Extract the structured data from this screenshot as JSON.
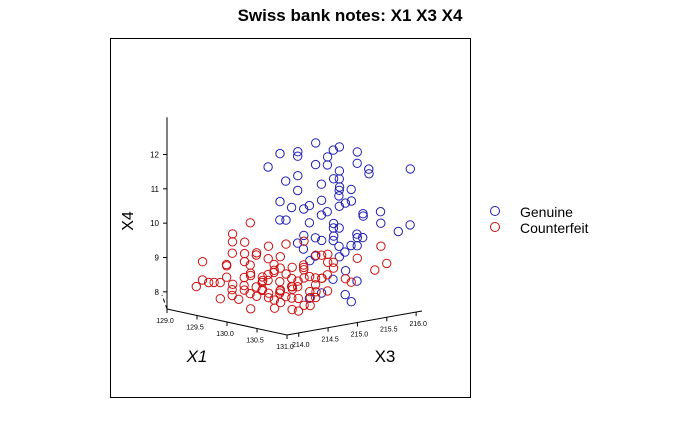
{
  "chart_data": {
    "type": "scatter",
    "title": "Swiss bank notes: X1 X3 X4",
    "xlabel": "X1",
    "ylabel": "X3",
    "zlabel": "X4",
    "x_ticks": [
      "129.0",
      "129.5",
      "130.0",
      "130.5",
      "131.0"
    ],
    "y_ticks": [
      "214.0",
      "214.5",
      "215.0",
      "215.5",
      "216.0"
    ],
    "z_ticks": [
      "8",
      "9",
      "10",
      "11",
      "12"
    ],
    "xlim": [
      129.0,
      131.0
    ],
    "ylim": [
      213.8,
      216.1
    ],
    "zlim": [
      7.5,
      12.8
    ],
    "legend_position": "right",
    "series": [
      {
        "name": "Genuine",
        "color": "#1f1fb4",
        "marker": "open-circle",
        "points": [
          [
            130.5,
            214.8,
            12.6
          ],
          [
            130.7,
            215.0,
            12.5
          ],
          [
            130.3,
            214.7,
            12.3
          ],
          [
            130.9,
            215.1,
            12.4
          ],
          [
            130.6,
            214.9,
            12.2
          ],
          [
            130.8,
            215.2,
            12.0
          ],
          [
            130.2,
            214.8,
            12.1
          ],
          [
            130.4,
            214.9,
            11.9
          ],
          [
            130.7,
            215.0,
            11.8
          ],
          [
            130.1,
            214.6,
            12.2
          ],
          [
            130.9,
            215.3,
            11.7
          ],
          [
            130.5,
            215.0,
            11.9
          ],
          [
            130.3,
            214.7,
            11.6
          ],
          [
            130.6,
            215.1,
            11.5
          ],
          [
            130.8,
            214.9,
            11.4
          ],
          [
            130.0,
            214.5,
            11.8
          ],
          [
            130.4,
            215.0,
            11.3
          ],
          [
            130.7,
            215.2,
            11.2
          ],
          [
            130.2,
            214.8,
            11.1
          ],
          [
            130.9,
            215.0,
            11.0
          ],
          [
            130.5,
            214.9,
            10.9
          ],
          [
            130.1,
            214.6,
            10.8
          ],
          [
            130.6,
            215.1,
            10.7
          ],
          [
            130.3,
            214.8,
            10.6
          ],
          [
            130.8,
            215.3,
            10.5
          ],
          [
            130.4,
            215.0,
            10.4
          ],
          [
            130.7,
            214.9,
            10.3
          ],
          [
            130.0,
            214.7,
            10.2
          ],
          [
            130.2,
            215.0,
            10.1
          ],
          [
            130.5,
            215.2,
            10.0
          ],
          [
            130.9,
            215.1,
            9.9
          ],
          [
            130.6,
            214.8,
            9.8
          ],
          [
            130.3,
            215.0,
            9.7
          ],
          [
            130.8,
            215.2,
            9.6
          ],
          [
            130.1,
            214.9,
            9.5
          ],
          [
            130.4,
            215.3,
            9.4
          ],
          [
            130.7,
            215.0,
            9.3
          ],
          [
            130.5,
            214.7,
            9.2
          ],
          [
            130.2,
            215.1,
            9.1
          ],
          [
            130.9,
            214.9,
            9.0
          ],
          [
            130.6,
            215.4,
            9.8
          ],
          [
            130.3,
            215.2,
            10.4
          ],
          [
            130.8,
            215.0,
            10.9
          ],
          [
            130.0,
            214.8,
            11.3
          ],
          [
            130.5,
            215.1,
            12.3
          ],
          [
            130.7,
            214.9,
            11.6
          ],
          [
            130.2,
            215.0,
            10.6
          ],
          [
            130.4,
            214.7,
            9.9
          ],
          [
            130.9,
            215.5,
            10.2
          ],
          [
            130.6,
            215.3,
            9.5
          ],
          [
            130.1,
            215.0,
            9.3
          ],
          [
            130.8,
            214.8,
            10.0
          ],
          [
            130.3,
            215.4,
            10.8
          ],
          [
            130.5,
            215.2,
            11.1
          ],
          [
            130.7,
            215.5,
            11.7
          ],
          [
            130.0,
            214.9,
            10.5
          ],
          [
            130.4,
            215.2,
            9.6
          ],
          [
            130.2,
            214.6,
            10.3
          ],
          [
            130.9,
            215.2,
            10.5
          ],
          [
            130.6,
            215.0,
            10.1
          ],
          [
            131.0,
            215.9,
            11.7
          ],
          [
            130.9,
            216.0,
            10.0
          ],
          [
            130.8,
            215.9,
            9.8
          ],
          [
            130.7,
            215.7,
            10.4
          ],
          [
            130.5,
            215.6,
            9.6
          ],
          [
            130.4,
            215.4,
            9.2
          ],
          [
            130.3,
            215.3,
            8.4
          ],
          [
            130.6,
            215.2,
            8.1
          ],
          [
            130.8,
            215.1,
            8.0
          ],
          [
            130.2,
            215.0,
            7.9
          ],
          [
            130.5,
            214.9,
            8.2
          ],
          [
            130.7,
            215.3,
            8.5
          ]
        ]
      },
      {
        "name": "Counterfeit",
        "color": "#cc1010",
        "marker": "open-circle",
        "points": [
          [
            129.0,
            214.3,
            8.0
          ],
          [
            129.2,
            214.2,
            8.3
          ],
          [
            129.3,
            214.1,
            8.9
          ],
          [
            129.4,
            214.3,
            7.8
          ],
          [
            129.5,
            214.0,
            8.4
          ],
          [
            129.6,
            214.2,
            8.9
          ],
          [
            129.7,
            214.1,
            8.6
          ],
          [
            129.8,
            214.3,
            8.2
          ],
          [
            129.5,
            214.4,
            7.9
          ],
          [
            129.9,
            214.0,
            8.5
          ],
          [
            130.0,
            214.2,
            8.8
          ],
          [
            129.6,
            214.3,
            9.2
          ],
          [
            129.7,
            214.5,
            8.0
          ],
          [
            129.8,
            214.0,
            9.0
          ],
          [
            129.9,
            214.4,
            8.3
          ],
          [
            130.0,
            214.1,
            9.4
          ],
          [
            130.1,
            214.3,
            8.7
          ],
          [
            129.7,
            214.2,
            9.6
          ],
          [
            129.8,
            214.6,
            8.1
          ],
          [
            129.9,
            214.2,
            9.1
          ],
          [
            130.0,
            214.5,
            8.5
          ],
          [
            130.1,
            214.0,
            9.8
          ],
          [
            130.2,
            214.4,
            8.9
          ],
          [
            129.8,
            214.1,
            9.9
          ],
          [
            129.9,
            214.6,
            8.6
          ],
          [
            130.0,
            214.3,
            9.3
          ],
          [
            130.1,
            214.6,
            8.2
          ],
          [
            130.2,
            214.1,
            9.5
          ],
          [
            130.3,
            214.5,
            8.8
          ],
          [
            129.9,
            214.3,
            10.2
          ],
          [
            130.0,
            214.7,
            8.4
          ],
          [
            130.1,
            214.4,
            9.2
          ],
          [
            130.2,
            214.7,
            8.0
          ],
          [
            130.3,
            214.2,
            9.7
          ],
          [
            130.4,
            214.6,
            8.6
          ],
          [
            130.0,
            214.0,
            8.1
          ],
          [
            130.1,
            214.5,
            9.0
          ],
          [
            130.2,
            214.2,
            8.4
          ],
          [
            130.3,
            214.8,
            8.9
          ],
          [
            130.4,
            214.3,
            9.4
          ],
          [
            130.5,
            214.7,
            8.3
          ],
          [
            130.1,
            214.1,
            8.8
          ],
          [
            130.2,
            214.6,
            9.6
          ],
          [
            130.3,
            214.3,
            8.1
          ],
          [
            130.4,
            214.9,
            8.6
          ],
          [
            130.5,
            214.4,
            9.1
          ],
          [
            130.6,
            214.8,
            8.7
          ],
          [
            130.2,
            214.0,
            7.9
          ],
          [
            130.3,
            214.4,
            9.0
          ],
          [
            130.4,
            214.1,
            8.4
          ],
          [
            130.5,
            214.9,
            9.3
          ],
          [
            130.6,
            214.5,
            8.0
          ],
          [
            130.7,
            214.9,
            9.0
          ],
          [
            130.3,
            214.2,
            8.2
          ],
          [
            130.4,
            214.7,
            8.9
          ],
          [
            130.5,
            214.2,
            8.5
          ],
          [
            130.6,
            214.7,
            9.4
          ],
          [
            130.7,
            214.3,
            8.3
          ],
          [
            130.8,
            215.0,
            8.7
          ],
          [
            130.4,
            214.5,
            7.8
          ],
          [
            130.5,
            214.6,
            9.8
          ],
          [
            130.6,
            214.3,
            8.6
          ],
          [
            130.7,
            214.8,
            9.2
          ],
          [
            130.8,
            214.4,
            8.1
          ],
          [
            130.9,
            215.1,
            9.3
          ],
          [
            130.5,
            214.1,
            8.0
          ],
          [
            130.6,
            214.5,
            8.8
          ],
          [
            130.7,
            214.6,
            8.4
          ],
          [
            130.8,
            214.7,
            9.5
          ],
          [
            130.9,
            214.5,
            8.9
          ],
          [
            131.0,
            215.4,
            9.6
          ],
          [
            130.9,
            215.6,
            9.0
          ],
          [
            130.8,
            215.5,
            8.8
          ],
          [
            130.7,
            215.2,
            8.5
          ],
          [
            130.6,
            214.9,
            8.3
          ],
          [
            130.5,
            214.8,
            8.1
          ],
          [
            130.3,
            214.9,
            8.6
          ],
          [
            130.2,
            214.8,
            8.3
          ],
          [
            130.1,
            214.7,
            8.0
          ],
          [
            130.0,
            214.6,
            8.7
          ],
          [
            129.9,
            214.5,
            8.4
          ],
          [
            129.8,
            214.4,
            8.9
          ],
          [
            129.7,
            214.4,
            8.5
          ],
          [
            129.6,
            214.5,
            8.2
          ],
          [
            129.4,
            214.5,
            8.0
          ],
          [
            129.3,
            214.4,
            8.2
          ],
          [
            129.1,
            214.5,
            8.1
          ],
          [
            130.3,
            214.0,
            8.3
          ],
          [
            130.4,
            214.0,
            8.8
          ],
          [
            130.6,
            214.1,
            8.2
          ],
          [
            130.7,
            214.2,
            8.6
          ],
          [
            130.8,
            214.2,
            8.0
          ],
          [
            130.9,
            214.3,
            8.4
          ],
          [
            130.1,
            214.8,
            8.5
          ],
          [
            130.2,
            214.9,
            8.9
          ],
          [
            130.0,
            214.9,
            8.2
          ],
          [
            129.9,
            214.8,
            8.0
          ],
          [
            130.5,
            215.0,
            8.7
          ],
          [
            130.6,
            215.0,
            9.1
          ],
          [
            130.4,
            214.9,
            8.4
          ]
        ]
      }
    ]
  }
}
